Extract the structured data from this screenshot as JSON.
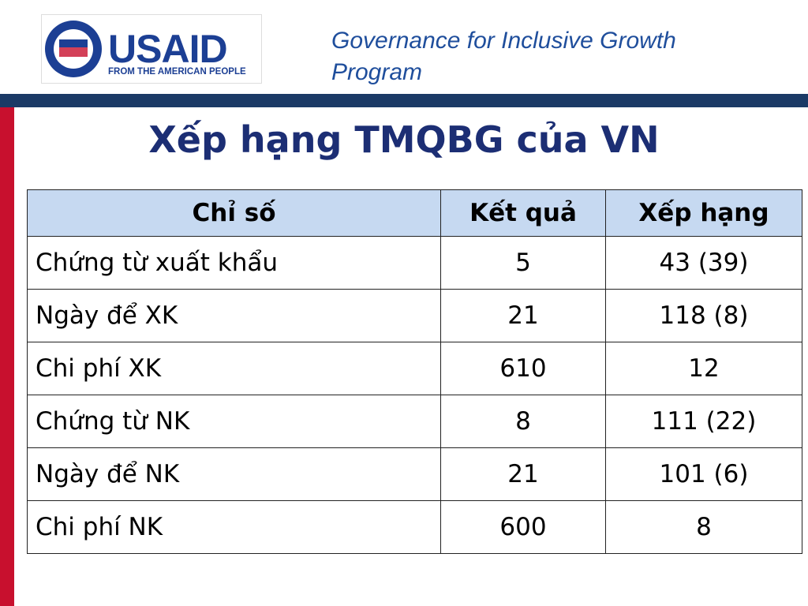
{
  "logo": {
    "name": "USAID",
    "tagline": "FROM THE AMERICAN PEOPLE"
  },
  "header": {
    "program": "Governance for Inclusive Growth Program"
  },
  "title": "Xếp hạng TMQBG của VN",
  "table": {
    "columns": [
      "Chỉ số",
      "Kết quả",
      "Xếp hạng"
    ],
    "rows": [
      [
        "Chứng từ xuất khẩu",
        "5",
        "43 (39)"
      ],
      [
        "Ngày để XK",
        "21",
        "118 (8)"
      ],
      [
        "Chi phí XK",
        "610",
        "12"
      ],
      [
        "Chứng từ NK",
        "8",
        "111 (22)"
      ],
      [
        "Ngày để NK",
        "21",
        "101 (6)"
      ],
      [
        "Chi phí NK",
        "600",
        "8"
      ]
    ]
  }
}
